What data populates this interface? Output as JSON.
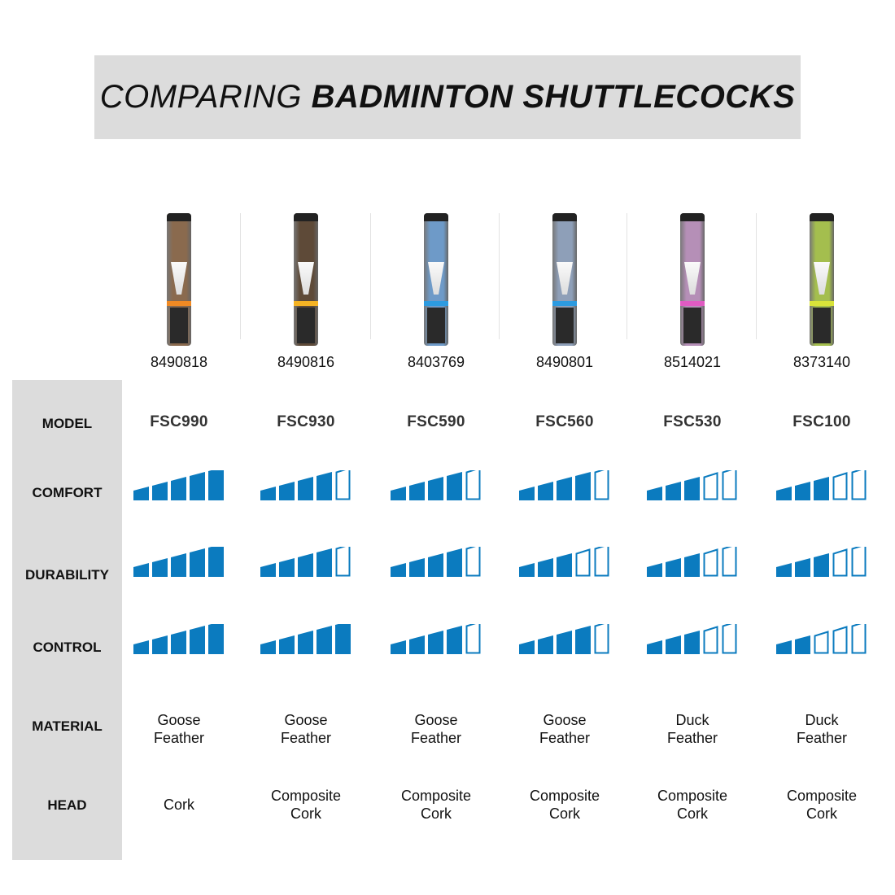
{
  "header": {
    "title_light": "COMPARING",
    "title_bold": "BADMINTON SHUTTLECOCKS"
  },
  "row_labels": {
    "model": "MODEL",
    "comfort": "COMFORT",
    "durability": "DURABILITY",
    "control": "CONTROL",
    "material": "MATERIAL",
    "head": "HEAD"
  },
  "rating_max": 5,
  "colors": {
    "rating_blue": "#0b7bbf",
    "label_bg": "#dcdcdc"
  },
  "products": [
    {
      "sku": "8490818",
      "model": "FSC990",
      "comfort": 5,
      "durability": 5,
      "control": 5,
      "material": [
        "Goose",
        "Feather"
      ],
      "head": [
        "Cork"
      ],
      "tube_color": "#8a6a4e",
      "accent": "#f08a24"
    },
    {
      "sku": "8490816",
      "model": "FSC930",
      "comfort": 4,
      "durability": 4,
      "control": 5,
      "material": [
        "Goose",
        "Feather"
      ],
      "head": [
        "Composite",
        "Cork"
      ],
      "tube_color": "#5e4a38",
      "accent": "#f5b324"
    },
    {
      "sku": "8403769",
      "model": "FSC590",
      "comfort": 4,
      "durability": 4,
      "control": 4,
      "material": [
        "Goose",
        "Feather"
      ],
      "head": [
        "Composite",
        "Cork"
      ],
      "tube_color": "#6e9ac8",
      "accent": "#2d9be0"
    },
    {
      "sku": "8490801",
      "model": "FSC560",
      "comfort": 4,
      "durability": 3,
      "control": 4,
      "material": [
        "Goose",
        "Feather"
      ],
      "head": [
        "Composite",
        "Cork"
      ],
      "tube_color": "#8e9fb8",
      "accent": "#2d9be0"
    },
    {
      "sku": "8514021",
      "model": "FSC530",
      "comfort": 3,
      "durability": 3,
      "control": 3,
      "material": [
        "Duck",
        "Feather"
      ],
      "head": [
        "Composite",
        "Cork"
      ],
      "tube_color": "#b58fb7",
      "accent": "#e05bc2"
    },
    {
      "sku": "8373140",
      "model": "FSC100",
      "comfort": 3,
      "durability": 3,
      "control": 2,
      "material": [
        "Duck",
        "Feather"
      ],
      "head": [
        "Composite",
        "Cork"
      ],
      "tube_color": "#a4be4e",
      "accent": "#d8e33a"
    }
  ]
}
